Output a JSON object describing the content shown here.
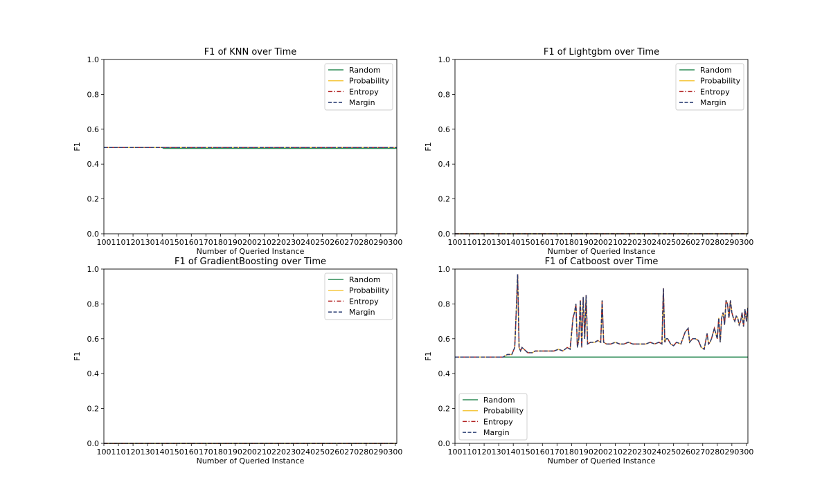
{
  "chart_data": [
    {
      "type": "line",
      "title": "F1 of KNN over Time",
      "xlabel": "Number of Queried Instance",
      "ylabel": "F1",
      "xlim": [
        100,
        301
      ],
      "ylim": [
        0,
        1
      ],
      "xticks": [
        100,
        110,
        120,
        130,
        140,
        150,
        160,
        170,
        180,
        190,
        200,
        210,
        220,
        230,
        240,
        250,
        260,
        270,
        280,
        290,
        300
      ],
      "yticks": [
        "0.0",
        "0.2",
        "0.4",
        "0.6",
        "0.8",
        "1.0"
      ],
      "legend_position": "upper right",
      "series": [
        {
          "name": "Random",
          "color": "#2e8b57",
          "dash": "solid",
          "x": [
            100,
            140,
            141,
            301
          ],
          "y": [
            0.495,
            0.495,
            0.49,
            0.49
          ]
        },
        {
          "name": "Probability",
          "color": "#f5c842",
          "dash": "solid",
          "x": [
            100,
            301
          ],
          "y": [
            0.495,
            0.495
          ]
        },
        {
          "name": "Entropy",
          "color": "#b22222",
          "dash": "dashdot",
          "x": [
            100,
            301
          ],
          "y": [
            0.495,
            0.495
          ]
        },
        {
          "name": "Margin",
          "color": "#2b3f73",
          "dash": "dashed",
          "x": [
            100,
            301
          ],
          "y": [
            0.495,
            0.495
          ]
        }
      ]
    },
    {
      "type": "line",
      "title": "F1 of Lightgbm over Time",
      "xlabel": "Number of Queried Instance",
      "ylabel": "F1",
      "xlim": [
        100,
        301
      ],
      "ylim": [
        0,
        1
      ],
      "xticks": [
        100,
        110,
        120,
        130,
        140,
        150,
        160,
        170,
        180,
        190,
        200,
        210,
        220,
        230,
        240,
        250,
        260,
        270,
        280,
        290,
        300
      ],
      "yticks": [
        "0.0",
        "0.2",
        "0.4",
        "0.6",
        "0.8",
        "1.0"
      ],
      "legend_position": "upper right",
      "series": [
        {
          "name": "Random",
          "color": "#2e8b57",
          "dash": "solid",
          "x": [
            100,
            301
          ],
          "y": [
            0,
            0
          ]
        },
        {
          "name": "Probability",
          "color": "#f5c842",
          "dash": "solid",
          "x": [
            100,
            301
          ],
          "y": [
            0,
            0
          ]
        },
        {
          "name": "Entropy",
          "color": "#b22222",
          "dash": "dashdot",
          "x": [
            100,
            301
          ],
          "y": [
            0,
            0
          ]
        },
        {
          "name": "Margin",
          "color": "#2b3f73",
          "dash": "dashed",
          "x": [
            100,
            301
          ],
          "y": [
            0,
            0
          ]
        }
      ]
    },
    {
      "type": "line",
      "title": "F1 of GradientBoosting over Time",
      "xlabel": "Number of Queried Instance",
      "ylabel": "F1",
      "xlim": [
        100,
        301
      ],
      "ylim": [
        0,
        1
      ],
      "xticks": [
        100,
        110,
        120,
        130,
        140,
        150,
        160,
        170,
        180,
        190,
        200,
        210,
        220,
        230,
        240,
        250,
        260,
        270,
        280,
        290,
        300
      ],
      "yticks": [
        "0.0",
        "0.2",
        "0.4",
        "0.6",
        "0.8",
        "1.0"
      ],
      "legend_position": "upper right",
      "series": [
        {
          "name": "Random",
          "color": "#2e8b57",
          "dash": "solid",
          "x": [
            100,
            301
          ],
          "y": [
            0,
            0
          ]
        },
        {
          "name": "Probability",
          "color": "#f5c842",
          "dash": "solid",
          "x": [
            100,
            301
          ],
          "y": [
            0,
            0
          ]
        },
        {
          "name": "Entropy",
          "color": "#b22222",
          "dash": "dashdot",
          "x": [
            100,
            301
          ],
          "y": [
            0,
            0
          ]
        },
        {
          "name": "Margin",
          "color": "#2b3f73",
          "dash": "dashed",
          "x": [
            100,
            301
          ],
          "y": [
            0,
            0
          ]
        }
      ]
    },
    {
      "type": "line",
      "title": "F1 of Catboost over Time",
      "xlabel": "Number of Queried Instance",
      "ylabel": "F1",
      "xlim": [
        100,
        301
      ],
      "ylim": [
        0,
        1
      ],
      "xticks": [
        100,
        110,
        120,
        130,
        140,
        150,
        160,
        170,
        180,
        190,
        200,
        210,
        220,
        230,
        240,
        250,
        260,
        270,
        280,
        290,
        300
      ],
      "yticks": [
        "0.0",
        "0.2",
        "0.4",
        "0.6",
        "0.8",
        "1.0"
      ],
      "legend_position": "lower left",
      "series": [
        {
          "name": "Random",
          "color": "#2e8b57",
          "dash": "solid",
          "x": [
            100,
            301
          ],
          "y": [
            0.495,
            0.495
          ]
        },
        {
          "name": "Probability",
          "color": "#f5c842",
          "dash": "solid",
          "x": [
            100,
            133,
            136,
            139,
            141,
            142,
            143,
            144,
            145,
            146,
            150,
            153,
            155,
            158,
            161,
            164,
            168,
            171,
            174,
            177,
            179,
            181,
            182,
            183,
            184,
            185,
            186,
            187,
            188,
            189,
            190,
            191,
            193,
            196,
            198,
            200,
            201,
            202,
            204,
            207,
            210,
            213,
            216,
            219,
            222,
            225,
            228,
            231,
            234,
            237,
            240,
            242,
            243,
            244,
            245,
            246,
            248,
            250,
            252,
            255,
            258,
            260,
            261,
            263,
            265,
            267,
            269,
            271,
            273,
            274,
            275,
            276,
            278,
            280,
            281,
            282,
            283,
            284,
            285,
            286,
            287,
            288,
            289,
            290,
            291,
            292,
            293,
            294,
            295,
            296,
            297,
            298,
            299,
            300,
            301
          ],
          "y": [
            0.495,
            0.495,
            0.51,
            0.51,
            0.55,
            0.75,
            0.97,
            0.55,
            0.53,
            0.55,
            0.52,
            0.52,
            0.53,
            0.53,
            0.53,
            0.53,
            0.53,
            0.54,
            0.53,
            0.55,
            0.54,
            0.72,
            0.75,
            0.8,
            0.55,
            0.6,
            0.82,
            0.55,
            0.84,
            0.6,
            0.85,
            0.57,
            0.58,
            0.58,
            0.59,
            0.58,
            0.82,
            0.58,
            0.57,
            0.57,
            0.58,
            0.57,
            0.57,
            0.58,
            0.57,
            0.57,
            0.57,
            0.57,
            0.58,
            0.57,
            0.58,
            0.57,
            0.89,
            0.58,
            0.6,
            0.6,
            0.57,
            0.56,
            0.58,
            0.57,
            0.64,
            0.66,
            0.58,
            0.6,
            0.6,
            0.59,
            0.55,
            0.54,
            0.63,
            0.57,
            0.58,
            0.6,
            0.66,
            0.6,
            0.72,
            0.58,
            0.72,
            0.75,
            0.68,
            0.82,
            0.8,
            0.72,
            0.82,
            0.75,
            0.72,
            0.7,
            0.73,
            0.72,
            0.68,
            0.7,
            0.75,
            0.67,
            0.77,
            0.7,
            0.78
          ]
        },
        {
          "name": "Entropy",
          "color": "#b22222",
          "dash": "dashdot",
          "x": [
            100,
            133,
            136,
            139,
            141,
            142,
            143,
            144,
            145,
            146,
            150,
            153,
            155,
            158,
            161,
            164,
            168,
            171,
            174,
            177,
            179,
            181,
            182,
            183,
            184,
            185,
            186,
            187,
            188,
            189,
            190,
            191,
            193,
            196,
            198,
            200,
            201,
            202,
            204,
            207,
            210,
            213,
            216,
            219,
            222,
            225,
            228,
            231,
            234,
            237,
            240,
            242,
            243,
            244,
            245,
            246,
            248,
            250,
            252,
            255,
            258,
            260,
            261,
            263,
            265,
            267,
            269,
            271,
            273,
            274,
            275,
            276,
            278,
            280,
            281,
            282,
            283,
            284,
            285,
            286,
            287,
            288,
            289,
            290,
            291,
            292,
            293,
            294,
            295,
            296,
            297,
            298,
            299,
            300,
            301
          ],
          "y": [
            0.495,
            0.495,
            0.51,
            0.51,
            0.55,
            0.75,
            0.97,
            0.55,
            0.53,
            0.55,
            0.52,
            0.52,
            0.53,
            0.53,
            0.53,
            0.53,
            0.53,
            0.54,
            0.53,
            0.55,
            0.54,
            0.72,
            0.75,
            0.8,
            0.55,
            0.6,
            0.82,
            0.55,
            0.84,
            0.6,
            0.85,
            0.57,
            0.58,
            0.58,
            0.59,
            0.58,
            0.82,
            0.58,
            0.57,
            0.57,
            0.58,
            0.57,
            0.57,
            0.58,
            0.57,
            0.57,
            0.57,
            0.57,
            0.58,
            0.57,
            0.58,
            0.57,
            0.89,
            0.58,
            0.6,
            0.6,
            0.57,
            0.56,
            0.58,
            0.57,
            0.64,
            0.66,
            0.58,
            0.6,
            0.6,
            0.59,
            0.55,
            0.54,
            0.63,
            0.57,
            0.58,
            0.6,
            0.66,
            0.6,
            0.72,
            0.58,
            0.72,
            0.75,
            0.68,
            0.82,
            0.8,
            0.72,
            0.82,
            0.75,
            0.72,
            0.7,
            0.73,
            0.72,
            0.68,
            0.7,
            0.75,
            0.67,
            0.77,
            0.7,
            0.78
          ]
        },
        {
          "name": "Margin",
          "color": "#2b3f73",
          "dash": "dashed",
          "x": [
            100,
            133,
            136,
            139,
            141,
            142,
            143,
            144,
            145,
            146,
            150,
            153,
            155,
            158,
            161,
            164,
            168,
            171,
            174,
            177,
            179,
            181,
            182,
            183,
            184,
            185,
            186,
            187,
            188,
            189,
            190,
            191,
            193,
            196,
            198,
            200,
            201,
            202,
            204,
            207,
            210,
            213,
            216,
            219,
            222,
            225,
            228,
            231,
            234,
            237,
            240,
            242,
            243,
            244,
            245,
            246,
            248,
            250,
            252,
            255,
            258,
            260,
            261,
            263,
            265,
            267,
            269,
            271,
            273,
            274,
            275,
            276,
            278,
            280,
            281,
            282,
            283,
            284,
            285,
            286,
            287,
            288,
            289,
            290,
            291,
            292,
            293,
            294,
            295,
            296,
            297,
            298,
            299,
            300,
            301
          ],
          "y": [
            0.495,
            0.495,
            0.51,
            0.51,
            0.55,
            0.75,
            0.97,
            0.55,
            0.53,
            0.55,
            0.52,
            0.52,
            0.53,
            0.53,
            0.53,
            0.53,
            0.53,
            0.54,
            0.53,
            0.55,
            0.54,
            0.72,
            0.75,
            0.8,
            0.55,
            0.6,
            0.82,
            0.55,
            0.84,
            0.6,
            0.85,
            0.57,
            0.58,
            0.58,
            0.59,
            0.58,
            0.82,
            0.58,
            0.57,
            0.57,
            0.58,
            0.57,
            0.57,
            0.58,
            0.57,
            0.57,
            0.57,
            0.57,
            0.58,
            0.57,
            0.58,
            0.57,
            0.89,
            0.58,
            0.6,
            0.6,
            0.57,
            0.56,
            0.58,
            0.57,
            0.64,
            0.66,
            0.58,
            0.6,
            0.6,
            0.59,
            0.55,
            0.54,
            0.63,
            0.57,
            0.58,
            0.6,
            0.66,
            0.6,
            0.72,
            0.58,
            0.72,
            0.75,
            0.68,
            0.82,
            0.8,
            0.72,
            0.82,
            0.75,
            0.72,
            0.7,
            0.73,
            0.72,
            0.68,
            0.7,
            0.75,
            0.67,
            0.77,
            0.7,
            0.78
          ]
        }
      ]
    }
  ]
}
